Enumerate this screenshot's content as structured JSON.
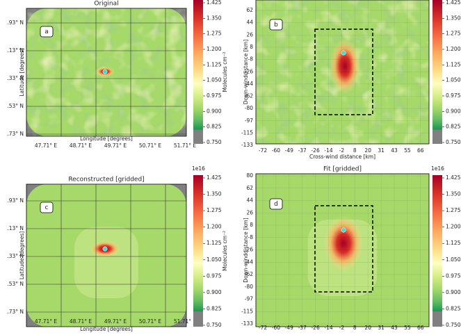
{
  "panels": [
    {
      "label": "a",
      "title": "Original",
      "xlabel": "Longitude [degrees]",
      "ylabel": "Latitude [degrees]",
      "xticks": [
        "47.71° E",
        "48.71° E",
        "49.71° E",
        "50.71° E",
        "51.71° E"
      ],
      "yticks": [
        ".93° N",
        ".13° N",
        ".33° N",
        ".53° N",
        ".73° N"
      ],
      "colorbar": {
        "label": "Molecules cm⁻²",
        "ticks": [
          "1.425",
          "1.350",
          "1.275",
          "1.200",
          "1.125",
          "1.050",
          "0.975",
          "0.900",
          "0.825",
          "0.750"
        ]
      }
    },
    {
      "label": "b",
      "xlabel": "Cross-wind distance [km]",
      "ylabel": "Down-winddistance [km]",
      "xticks": [
        "-72",
        "-60",
        "-49",
        "-37",
        "-26",
        "-14",
        "-2",
        "8",
        "20",
        "31",
        "43",
        "55",
        "66"
      ],
      "yticks": [
        "62",
        "44",
        "26",
        "8",
        "-8",
        "-26",
        "-44",
        "-62",
        "-80",
        "-97",
        "-115",
        "-133"
      ],
      "colorbar": {
        "ticks": [
          "1.425",
          "1.350",
          "1.275",
          "1.200",
          "1.125",
          "1.050",
          "0.975",
          "0.900",
          "0.825",
          "0.750"
        ]
      }
    },
    {
      "label": "c",
      "title": "Reconstructed [gridded]",
      "xlabel": "Longitude [degrees]",
      "ylabel": "Latitude [degrees]",
      "xticks": [
        "47.71° E",
        "48.71° E",
        "49.71° E",
        "50.71° E",
        "51.71° E"
      ],
      "yticks": [
        ".93° N",
        ".13° N",
        ".33° N",
        ".53° N",
        ".73° N"
      ],
      "colorbar": {
        "exponent": "1e16",
        "label": "Molecules cm⁻²",
        "ticks": [
          "1.425",
          "1.350",
          "1.275",
          "1.200",
          "1.125",
          "1.050",
          "0.975",
          "0.900",
          "0.825",
          "0.750"
        ]
      }
    },
    {
      "label": "d",
      "title": "Fit [gridded]",
      "ylabel": "Down-winddistance [km]",
      "xticks": [
        "-72",
        "-60",
        "-49",
        "-37",
        "-26",
        "-14",
        "-2",
        "8",
        "20",
        "31",
        "43",
        "55",
        "66"
      ],
      "yticks": [
        "80",
        "62",
        "44",
        "26",
        "8",
        "-8",
        "-26",
        "-44",
        "-62",
        "-80",
        "-97",
        "-115",
        "-133"
      ],
      "colorbar": {
        "exponent": "1e16",
        "ticks": [
          "1.425",
          "1.350",
          "1.275",
          "1.200",
          "1.125",
          "1.050",
          "0.975",
          "0.900",
          "0.825",
          "0.750"
        ]
      }
    }
  ]
}
